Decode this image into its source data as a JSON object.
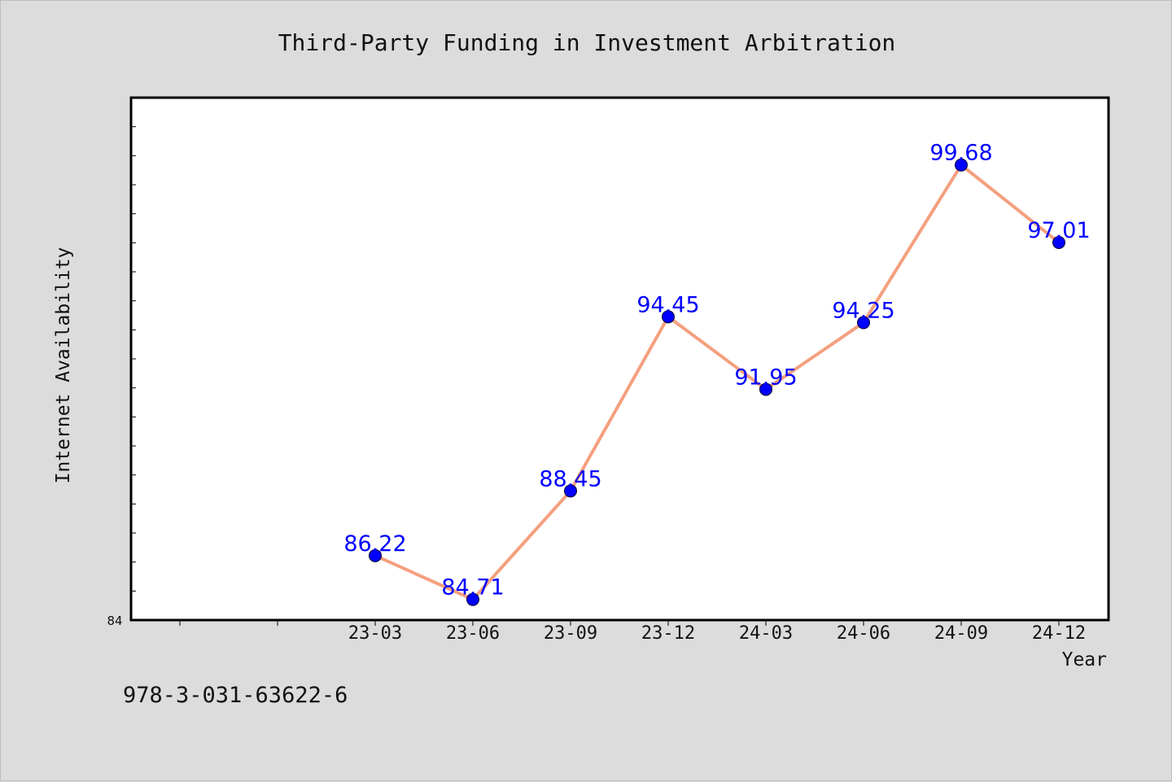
{
  "chart_data": {
    "type": "line",
    "title": "Third-Party Funding in Investment Arbitration",
    "xlabel": "Year",
    "ylabel": "Internet Availability",
    "categories": [
      "23-03",
      "23-06",
      "23-09",
      "23-12",
      "24-03",
      "24-06",
      "24-09",
      "24-12"
    ],
    "series": [
      {
        "values": [
          86.22,
          84.71,
          88.45,
          94.45,
          91.95,
          94.25,
          99.68,
          97.01
        ],
        "labels": [
          "86.22",
          "84.71",
          "88.45",
          "94.45",
          "91.95",
          "94.25",
          "99.68",
          "97.01"
        ]
      }
    ],
    "ylim": [
      84,
      102
    ],
    "ytick_label": "84",
    "grid": false,
    "legend": "none",
    "colors": {
      "line": "#f4a07f",
      "marker": "#0000ff",
      "data_label": "#0000ff",
      "background": "#dcdcdc",
      "plot_background": "#ffffff"
    }
  },
  "footer": {
    "isbn": "978-3-031-63622-6"
  }
}
